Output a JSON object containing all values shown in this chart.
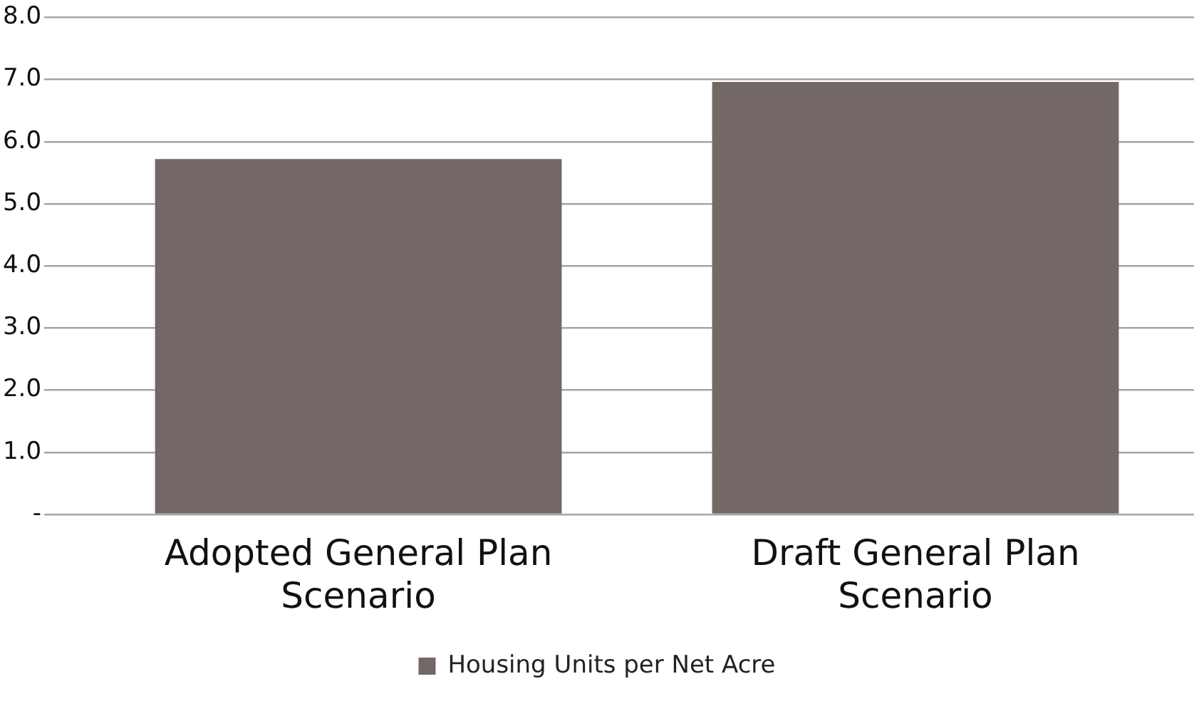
{
  "chart_data": {
    "type": "bar",
    "categories": [
      "Adopted General Plan Scenario",
      "Draft General Plan Scenario"
    ],
    "series": [
      {
        "name": "Housing Units per Net Acre",
        "color": "#736866",
        "values": [
          5.72,
          6.96
        ]
      }
    ],
    "ylim": [
      0,
      8
    ],
    "yticks": [
      {
        "value": 0,
        "label": "-"
      },
      {
        "value": 1,
        "label": "1.0"
      },
      {
        "value": 2,
        "label": "2.0"
      },
      {
        "value": 3,
        "label": "3.0"
      },
      {
        "value": 4,
        "label": "4.0"
      },
      {
        "value": 5,
        "label": "5.0"
      },
      {
        "value": 6,
        "label": "6.0"
      },
      {
        "value": 7,
        "label": "7.0"
      },
      {
        "value": 8,
        "label": "8.0"
      }
    ],
    "grid": "y",
    "legend": "bottom"
  }
}
